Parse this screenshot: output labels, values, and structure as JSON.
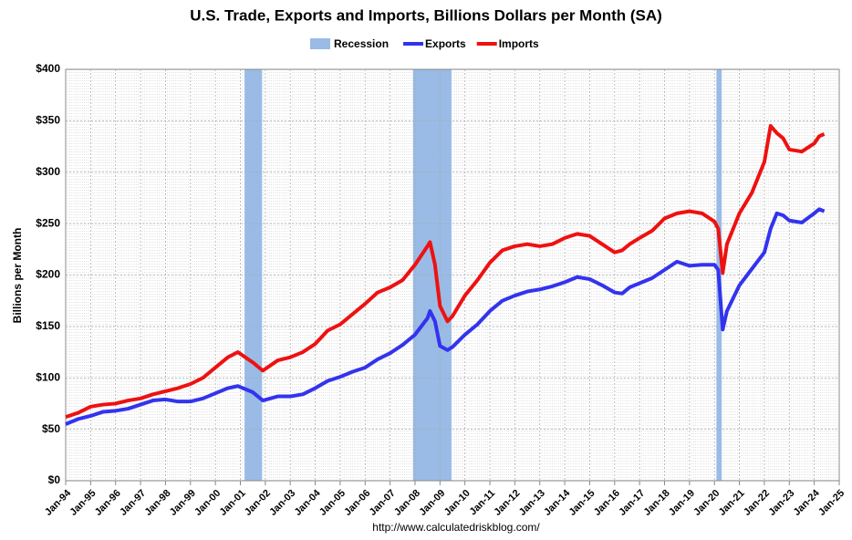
{
  "chart_data": {
    "type": "line",
    "title": "U.S. Trade, Exports and Imports, Billions Dollars per Month (SA)",
    "ylabel": "Billions per Month",
    "source": "http://www.calculatedriskblog.com/",
    "recessions": {
      "name": "Recession",
      "color": "#99bbe6",
      "periods": [
        [
          2001.17,
          2001.87
        ],
        [
          2007.92,
          2009.46
        ],
        [
          2020.08,
          2020.29
        ]
      ]
    },
    "x": [
      1994,
      1994.5,
      1995,
      1995.5,
      1996,
      1996.5,
      1997,
      1997.5,
      1998,
      1998.5,
      1999,
      1999.5,
      2000,
      2000.5,
      2000.9,
      2001.5,
      2001.9,
      2002.5,
      2003,
      2003.5,
      2004,
      2004.5,
      2005,
      2005.5,
      2006,
      2006.5,
      2007,
      2007.5,
      2008,
      2008.5,
      2008.6,
      2008.8,
      2009,
      2009.3,
      2009.5,
      2010,
      2010.5,
      2011,
      2011.5,
      2012,
      2012.5,
      2013,
      2013.5,
      2014,
      2014.5,
      2015,
      2015.5,
      2016,
      2016.3,
      2016.6,
      2017,
      2017.5,
      2018,
      2018.5,
      2019,
      2019.5,
      2020,
      2020.15,
      2020.33,
      2020.5,
      2021,
      2021.5,
      2022,
      2022.25,
      2022.5,
      2022.75,
      2023,
      2023.5,
      2024,
      2024.2,
      2024.4
    ],
    "series": [
      {
        "name": "Exports",
        "color": "#3333ee",
        "values": [
          55,
          60,
          63,
          67,
          68,
          70,
          74,
          78,
          79,
          77,
          77,
          80,
          85,
          90,
          92,
          86,
          78,
          82,
          82,
          84,
          90,
          97,
          101,
          106,
          110,
          118,
          124,
          132,
          142,
          158,
          165,
          155,
          131,
          127,
          130,
          142,
          152,
          165,
          175,
          180,
          184,
          186,
          189,
          193,
          198,
          196,
          190,
          183,
          182,
          188,
          192,
          197,
          205,
          213,
          209,
          210,
          210,
          205,
          147,
          165,
          190,
          206,
          222,
          245,
          260,
          258,
          253,
          251,
          260,
          264,
          262
        ]
      },
      {
        "name": "Imports",
        "color": "#ee1111",
        "values": [
          62,
          66,
          72,
          74,
          75,
          78,
          80,
          84,
          87,
          90,
          94,
          100,
          110,
          120,
          125,
          115,
          107,
          117,
          120,
          125,
          133,
          146,
          152,
          162,
          172,
          183,
          188,
          195,
          210,
          228,
          232,
          210,
          170,
          155,
          160,
          180,
          195,
          212,
          224,
          228,
          230,
          228,
          230,
          236,
          240,
          238,
          230,
          222,
          224,
          230,
          236,
          243,
          255,
          260,
          262,
          260,
          252,
          245,
          202,
          230,
          260,
          280,
          310,
          345,
          338,
          333,
          322,
          320,
          328,
          335,
          337
        ]
      }
    ],
    "xlim": [
      1994,
      2025
    ],
    "xticks": [
      {
        "value": 1994,
        "label": "Jan-94"
      },
      {
        "value": 1995,
        "label": "Jan-95"
      },
      {
        "value": 1996,
        "label": "Jan-96"
      },
      {
        "value": 1997,
        "label": "Jan-97"
      },
      {
        "value": 1998,
        "label": "Jan-98"
      },
      {
        "value": 1999,
        "label": "Jan-99"
      },
      {
        "value": 2000,
        "label": "Jan-00"
      },
      {
        "value": 2001,
        "label": "Jan-01"
      },
      {
        "value": 2002,
        "label": "Jan-02"
      },
      {
        "value": 2003,
        "label": "Jan-03"
      },
      {
        "value": 2004,
        "label": "Jan-04"
      },
      {
        "value": 2005,
        "label": "Jan-05"
      },
      {
        "value": 2006,
        "label": "Jan-06"
      },
      {
        "value": 2007,
        "label": "Jan-07"
      },
      {
        "value": 2008,
        "label": "Jan-08"
      },
      {
        "value": 2009,
        "label": "Jan-09"
      },
      {
        "value": 2010,
        "label": "Jan-10"
      },
      {
        "value": 2011,
        "label": "Jan-11"
      },
      {
        "value": 2012,
        "label": "Jan-12"
      },
      {
        "value": 2013,
        "label": "Jan-13"
      },
      {
        "value": 2014,
        "label": "Jan-14"
      },
      {
        "value": 2015,
        "label": "Jan-15"
      },
      {
        "value": 2016,
        "label": "Jan-16"
      },
      {
        "value": 2017,
        "label": "Jan-17"
      },
      {
        "value": 2018,
        "label": "Jan-18"
      },
      {
        "value": 2019,
        "label": "Jan-19"
      },
      {
        "value": 2020,
        "label": "Jan-20"
      },
      {
        "value": 2021,
        "label": "Jan-21"
      },
      {
        "value": 2022,
        "label": "Jan-22"
      },
      {
        "value": 2023,
        "label": "Jan-23"
      },
      {
        "value": 2024,
        "label": "Jan-24"
      },
      {
        "value": 2025,
        "label": "Jan-25"
      }
    ],
    "ylim": [
      0,
      400
    ],
    "yticks": [
      {
        "value": 0,
        "label": "$0"
      },
      {
        "value": 50,
        "label": "$50"
      },
      {
        "value": 100,
        "label": "$100"
      },
      {
        "value": 150,
        "label": "$150"
      },
      {
        "value": 200,
        "label": "$200"
      },
      {
        "value": 250,
        "label": "$250"
      },
      {
        "value": 300,
        "label": "$300"
      },
      {
        "value": 350,
        "label": "$350"
      },
      {
        "value": 400,
        "label": "$400"
      }
    ],
    "grid": true
  }
}
